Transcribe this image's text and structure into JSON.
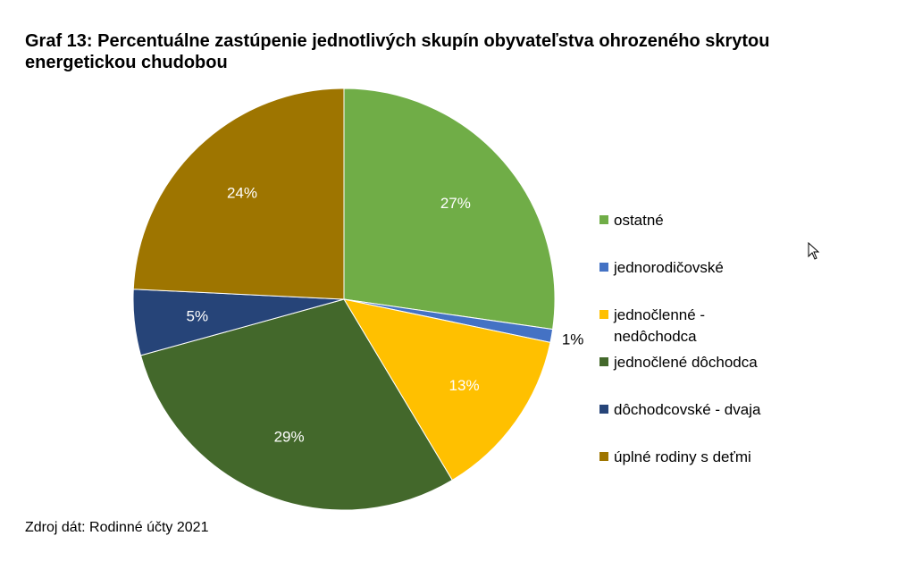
{
  "chart_data": {
    "type": "pie",
    "title": "Graf 13: Percentuálne zastúpenie jednotlivých skupín obyvateľstva ohrozeného skrytou energetickou chudobou",
    "legend_position": "right",
    "slices": [
      {
        "name": "ostatné",
        "value": 27,
        "label": "27%",
        "color": "#70ad47"
      },
      {
        "name": "jednorodičovské",
        "value": 1,
        "label": "1%",
        "color": "#4472c4"
      },
      {
        "name": "jednočlenné - nedôchodca",
        "value": 13,
        "label": "13%",
        "color": "#ffc000"
      },
      {
        "name": "jednočlené dôchodca",
        "value": 29,
        "label": "29%",
        "color": "#43682b"
      },
      {
        "name": "dôchodcovské - dvaja",
        "value": 5,
        "label": "5%",
        "color": "#264478"
      },
      {
        "name": "úplné rodiny s deťmi",
        "value": 24,
        "label": "24%",
        "color": "#9e7500"
      }
    ],
    "legend": [
      {
        "lines": [
          "ostatné"
        ]
      },
      {
        "lines": [
          "jednorodičovské"
        ]
      },
      {
        "lines": [
          "jednočlenné -",
          "nedôchodca"
        ]
      },
      {
        "lines": [
          "jednočlené dôchodca"
        ]
      },
      {
        "lines": [
          "dôchodcovské - dvaja"
        ]
      },
      {
        "lines": [
          "úplné rodiny s deťmi"
        ]
      }
    ]
  },
  "source": "Zdroj dát: Rodinné účty 2021",
  "icons": {
    "cursor": "mouse-pointer-icon"
  }
}
